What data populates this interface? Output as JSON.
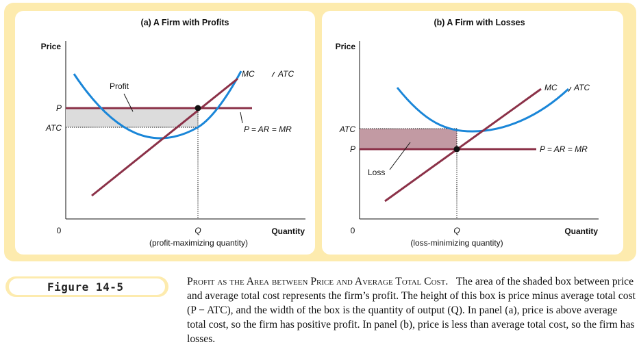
{
  "colors": {
    "background_panel": "#fdebae",
    "mc_line": "#8b3148",
    "atc_curve": "#1a86d8",
    "profit_box": "#dcdcdc",
    "loss_box": "#c29aa3"
  },
  "panel_a": {
    "title": "(a) A Firm with Profits",
    "y_axis_label": "Price",
    "x_axis_label": "Quantity",
    "origin": "0",
    "p_label": "P",
    "atc_tick": "ATC",
    "q_tick": "Q",
    "q_note": "(profit-maximizing quantity)",
    "mc_label": "MC",
    "atc_label": "ATC",
    "price_line_label": "P = AR = MR",
    "area_label": "Profit"
  },
  "panel_b": {
    "title": "(b) A Firm with Losses",
    "y_axis_label": "Price",
    "x_axis_label": "Quantity",
    "origin": "0",
    "p_label": "P",
    "atc_tick": "ATC",
    "q_tick": "Q",
    "q_note": "(loss-minimizing quantity)",
    "mc_label": "MC",
    "atc_label": "ATC",
    "price_line_label": "P = AR = MR",
    "area_label": "Loss"
  },
  "figure": {
    "label": "Figure 14-5",
    "caption_title": "Profit as the Area between Price and Average Total Cost.",
    "caption_body": "The area of the shaded box between price and average total cost represents the firm’s profit. The height of this box is price minus average total cost (P − ATC), and the width of the box is the quantity of output (Q). In panel (a), price is above average total cost, so the firm has positive profit. In panel (b), price is less than average total cost, so the firm has losses."
  }
}
